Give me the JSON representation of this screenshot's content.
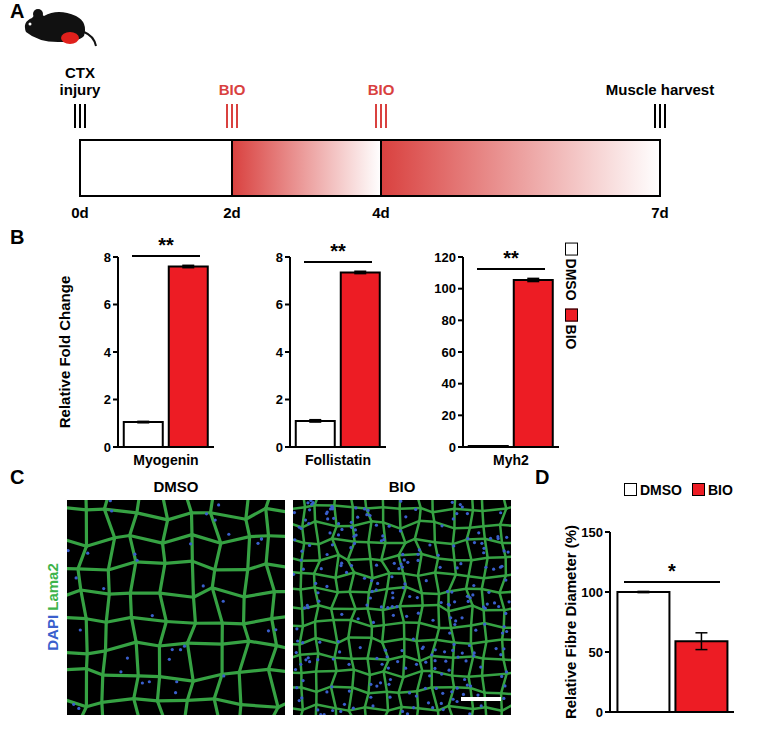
{
  "panel_labels": [
    "A",
    "B",
    "C",
    "D"
  ],
  "timeline": {
    "ticks": [
      "0d",
      "2d",
      "4d",
      "7d"
    ],
    "events": [
      {
        "at": "0d",
        "label": "CTX injury",
        "color": "#000000"
      },
      {
        "at": "2d",
        "label": "BIO",
        "color": "#d9413f"
      },
      {
        "at": "4d",
        "label": "BIO",
        "color": "#d9413f"
      },
      {
        "at": "7d",
        "label": "Muscle harvest",
        "color": "#000000"
      }
    ]
  },
  "images": {
    "titles": [
      "DMSO",
      "BIO"
    ],
    "stain": [
      {
        "text": "DAPI",
        "color": "#3a5fcd"
      },
      {
        "text": "Lama2",
        "color": "#3cb44b"
      }
    ]
  },
  "chart_data": [
    {
      "type": "bar",
      "y_label": "Relative Fold Change",
      "categories": [
        "Myogenin"
      ],
      "ylim": [
        0,
        8
      ],
      "yticks": [
        0,
        2,
        4,
        6,
        8
      ],
      "significance": "**",
      "series": [
        {
          "name": "DMSO",
          "color": "#ffffff",
          "values": [
            1.05
          ],
          "errors": [
            0.03
          ]
        },
        {
          "name": "BIO",
          "color": "#ed1c24",
          "values": [
            7.6
          ],
          "errors": [
            0.05
          ]
        }
      ]
    },
    {
      "type": "bar",
      "categories": [
        "Follistatin"
      ],
      "ylim": [
        0,
        8
      ],
      "yticks": [
        0,
        2,
        4,
        6,
        8
      ],
      "significance": "**",
      "series": [
        {
          "name": "DMSO",
          "color": "#ffffff",
          "values": [
            1.1
          ],
          "errors": [
            0.05
          ]
        },
        {
          "name": "BIO",
          "color": "#ed1c24",
          "values": [
            7.35
          ],
          "errors": [
            0.05
          ]
        }
      ]
    },
    {
      "type": "bar",
      "categories": [
        "Myh2"
      ],
      "ylim": [
        0,
        120
      ],
      "yticks": [
        0,
        20,
        40,
        60,
        80,
        100,
        120
      ],
      "significance": "**",
      "legend": "right",
      "series": [
        {
          "name": "DMSO",
          "color": "#ffffff",
          "values": [
            0.7
          ],
          "errors": [
            0.1
          ]
        },
        {
          "name": "BIO",
          "color": "#ed1c24",
          "values": [
            105.5
          ],
          "errors": [
            1.0
          ]
        }
      ]
    },
    {
      "type": "bar",
      "y_label": "Relative Fibre Diameter (%)",
      "categories": [
        null
      ],
      "ylim": [
        0,
        150
      ],
      "yticks": [
        0,
        50,
        100,
        150
      ],
      "significance": "*",
      "legend": "top",
      "series": [
        {
          "name": "DMSO",
          "color": "#ffffff",
          "values": [
            100
          ],
          "errors": [
            0.5
          ]
        },
        {
          "name": "BIO",
          "color": "#ed1c24",
          "values": [
            59
          ],
          "errors": [
            7
          ]
        }
      ]
    }
  ]
}
